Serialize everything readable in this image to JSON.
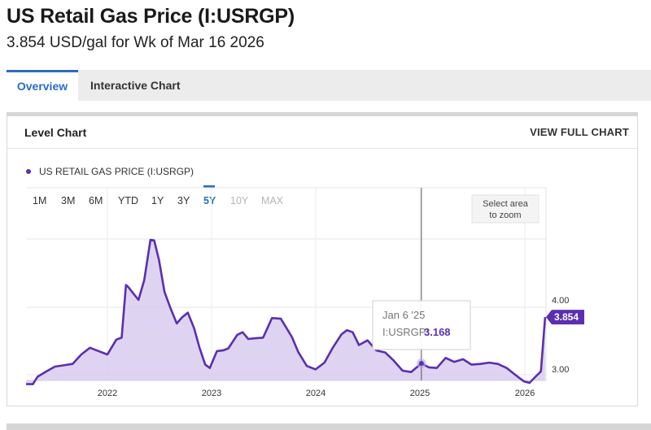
{
  "header": {
    "title": "US Retail Gas Price (I:USRGP)",
    "subtitle": "3.854 USD/gal for Wk of Mar 16 2026"
  },
  "tabs": [
    {
      "label": "Overview",
      "active": true
    },
    {
      "label": "Interactive Chart",
      "active": false
    }
  ],
  "panel": {
    "title": "Level Chart",
    "view_full_chart": "VIEW FULL CHART"
  },
  "colors": {
    "series": "#5b2fb0",
    "fill": "#d8ccef",
    "accent": "#2b6cc4"
  },
  "chart_data": {
    "type": "area",
    "legend": "US RETAIL GAS PRICE (I:USRGP)",
    "legend_position": "top-left",
    "ranges": [
      {
        "label": "1M",
        "state": "normal"
      },
      {
        "label": "3M",
        "state": "normal"
      },
      {
        "label": "6M",
        "state": "normal"
      },
      {
        "label": "YTD",
        "state": "normal"
      },
      {
        "label": "1Y",
        "state": "normal"
      },
      {
        "label": "3Y",
        "state": "normal"
      },
      {
        "label": "5Y",
        "state": "selected"
      },
      {
        "label": "10Y",
        "state": "disabled"
      },
      {
        "label": "MAX",
        "state": "disabled"
      }
    ],
    "zoom_hint": [
      "Select area",
      "to zoom"
    ],
    "y_ticks": [
      "3.00",
      "4.00"
    ],
    "ylim": [
      2.85,
      5.2
    ],
    "x_ticks": [
      "2022",
      "2023",
      "2024",
      "2025",
      "2026"
    ],
    "grid": true,
    "series": [
      {
        "name": "US RETAIL GAS PRICE (I:USRGP)",
        "x": [
          "2021-03-22",
          "2021-04-15",
          "2021-05-01",
          "2021-06-01",
          "2021-07-01",
          "2021-08-01",
          "2021-09-01",
          "2021-10-01",
          "2021-11-01",
          "2021-12-01",
          "2022-01-01",
          "2022-02-01",
          "2022-02-20",
          "2022-03-07",
          "2022-03-15",
          "2022-04-01",
          "2022-04-20",
          "2022-05-10",
          "2022-06-01",
          "2022-06-14",
          "2022-07-01",
          "2022-07-20",
          "2022-08-10",
          "2022-09-01",
          "2022-09-20",
          "2022-10-10",
          "2022-11-01",
          "2022-11-20",
          "2022-12-10",
          "2022-12-26",
          "2023-01-20",
          "2023-02-10",
          "2023-03-01",
          "2023-04-01",
          "2023-04-20",
          "2023-05-10",
          "2023-06-01",
          "2023-07-01",
          "2023-08-01",
          "2023-09-01",
          "2023-09-20",
          "2023-10-10",
          "2023-11-01",
          "2023-12-01",
          "2024-01-01",
          "2024-02-01",
          "2024-03-01",
          "2024-04-01",
          "2024-04-20",
          "2024-05-10",
          "2024-06-01",
          "2024-07-01",
          "2024-08-01",
          "2024-09-01",
          "2024-10-01",
          "2024-11-01",
          "2024-12-01",
          "2025-01-06",
          "2025-02-01",
          "2025-03-01",
          "2025-04-01",
          "2025-05-01",
          "2025-06-01",
          "2025-07-01",
          "2025-08-01",
          "2025-09-01",
          "2025-10-01",
          "2025-11-01",
          "2025-12-01",
          "2026-01-01",
          "2026-01-20",
          "2026-02-10",
          "2026-03-01",
          "2026-03-16"
        ],
        "values": [
          2.86,
          2.86,
          2.97,
          3.05,
          3.12,
          3.14,
          3.16,
          3.3,
          3.4,
          3.35,
          3.3,
          3.52,
          3.55,
          4.33,
          4.3,
          4.21,
          4.11,
          4.4,
          5.0,
          4.99,
          4.7,
          4.23,
          3.99,
          3.76,
          3.85,
          3.92,
          3.69,
          3.4,
          3.15,
          3.1,
          3.35,
          3.36,
          3.39,
          3.59,
          3.63,
          3.53,
          3.54,
          3.55,
          3.84,
          3.83,
          3.7,
          3.56,
          3.34,
          3.13,
          3.08,
          3.18,
          3.4,
          3.6,
          3.66,
          3.63,
          3.44,
          3.51,
          3.36,
          3.33,
          3.21,
          3.06,
          3.04,
          3.168,
          3.11,
          3.1,
          3.25,
          3.19,
          3.23,
          3.15,
          3.16,
          3.18,
          3.16,
          3.1,
          3.0,
          2.9,
          2.88,
          2.97,
          3.05,
          3.854
        ]
      }
    ],
    "last_value": "3.854",
    "tooltip": {
      "date": "Jan 6 '25",
      "label": "I:USRGP: ",
      "value": "3.168",
      "x": "2025-01-06"
    }
  }
}
